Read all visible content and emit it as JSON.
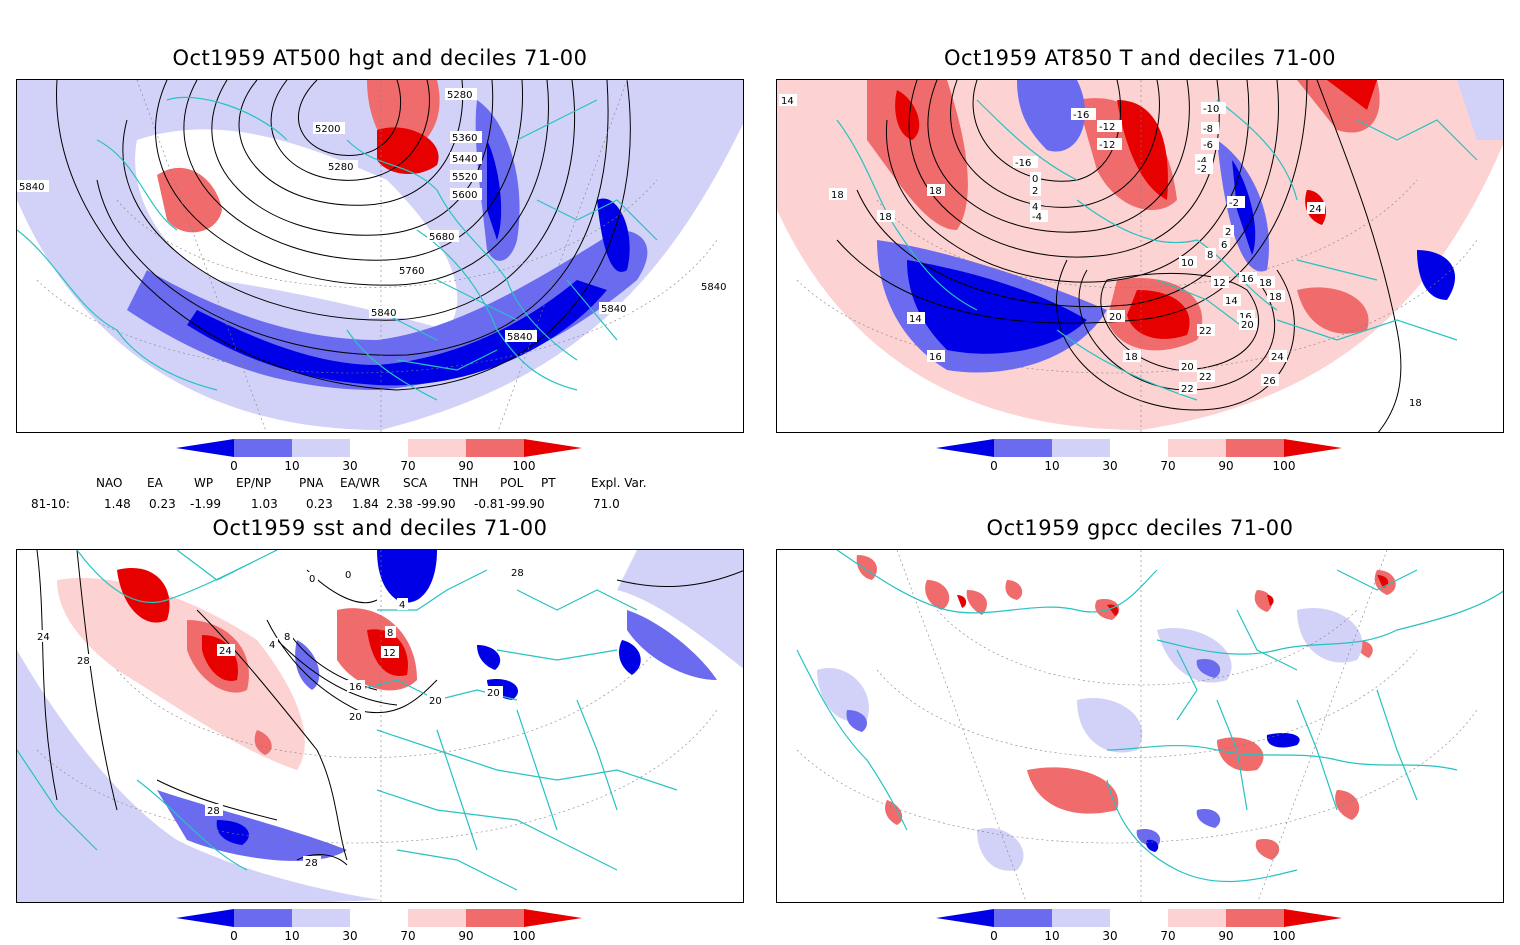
{
  "panels": [
    {
      "title": "Oct1959 AT500 hgt and deciles 71-00",
      "contour_labels": [
        "5280",
        "5200",
        "5280",
        "5360",
        "5440",
        "5520",
        "5600",
        "5680",
        "5760",
        "5840",
        "5840",
        "5840",
        "5840",
        "5840"
      ]
    },
    {
      "title": "Oct1959 AT850 T and deciles 71-00",
      "contour_labels": [
        "14",
        "18",
        "18",
        "18",
        "-16",
        "-16",
        "-12",
        "-12",
        "-10",
        "-8",
        "-6",
        "-4",
        "-2",
        "0",
        "2",
        "4",
        "-4",
        "-2",
        "2",
        "6",
        "8",
        "10",
        "12",
        "14",
        "16",
        "18",
        "20",
        "22",
        "24",
        "26",
        "22",
        "20",
        "18",
        "20",
        "22",
        "24",
        "16",
        "18",
        "14",
        "16",
        "18"
      ]
    },
    {
      "title": "Oct1959 sst and deciles 71-00",
      "contour_labels": [
        "24",
        "28",
        "0",
        "0",
        "4",
        "4",
        "8",
        "12",
        "16",
        "20",
        "24",
        "20",
        "20",
        "28",
        "28",
        "28",
        "8"
      ]
    },
    {
      "title": "Oct1959 gpcc deciles 71-00",
      "contour_labels": []
    }
  ],
  "colorbar": {
    "ticks": [
      "0",
      "10",
      "30",
      "70",
      "90",
      "100"
    ],
    "colors": [
      "#0000e6",
      "#6b6bf0",
      "#d2d2f8",
      "#ffffff",
      "#fcd2d2",
      "#f06b6b",
      "#e60000"
    ]
  },
  "indices": {
    "headers": [
      "NAO",
      "EA",
      "WP",
      "EP/NP",
      "PNA",
      "EA/WR",
      "SCA",
      "TNH",
      "POL",
      "PT",
      "Expl. Var."
    ],
    "row_label": "81-10:",
    "values": [
      "1.48",
      "0.23",
      "-1.99",
      "1.03",
      "0.23",
      "1.84",
      "2.38",
      "-99.90",
      "-0.81",
      "-99.90",
      "71.0"
    ]
  },
  "colors": {
    "land_outline": "#27c2c2",
    "blue": "#0000e6",
    "mid_blue": "#6b6bf0",
    "light_blue": "#d2d2f8",
    "light_red": "#fcd2d2",
    "mid_red": "#f06b6b",
    "red": "#e60000"
  }
}
